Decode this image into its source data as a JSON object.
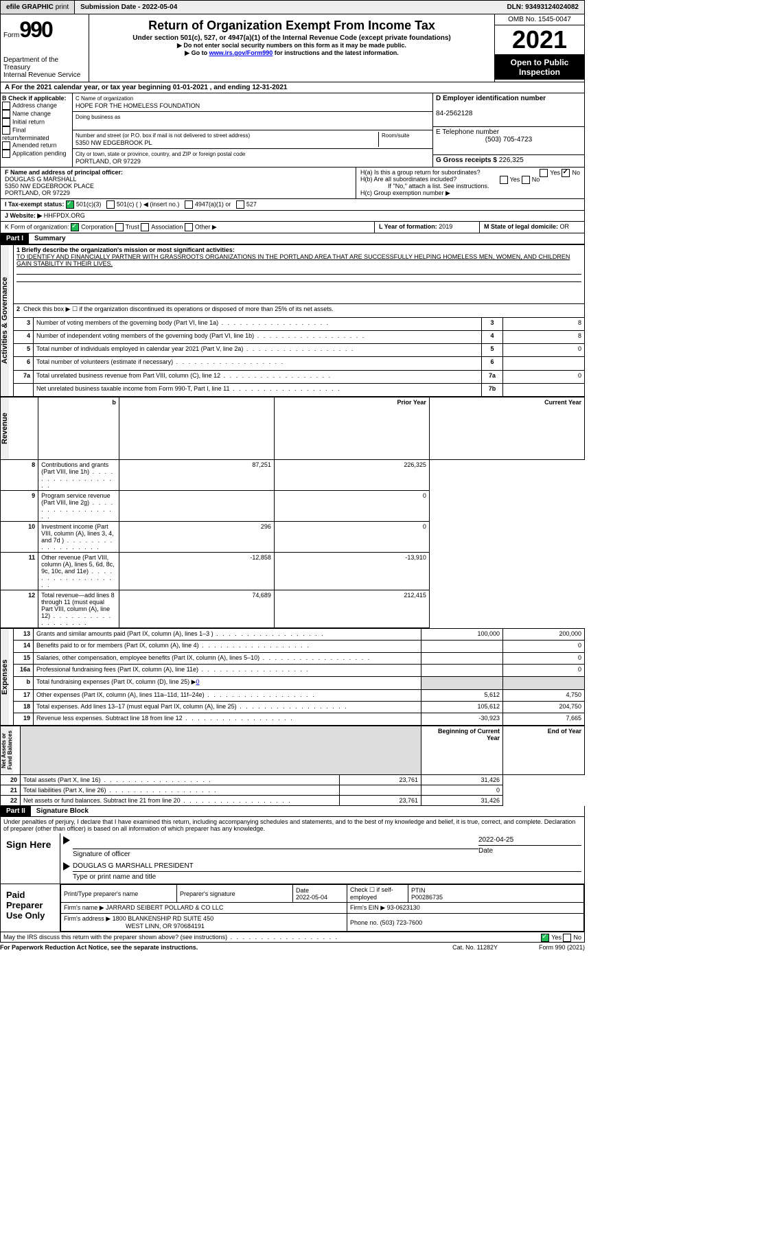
{
  "toolbar": {
    "efile": "efile GRAPHIC",
    "print": "print",
    "submission": "Submission Date - 2022-05-04",
    "dln": "DLN: 93493124024082"
  },
  "header": {
    "form_label": "Form",
    "form_no": "990",
    "dept": "Department of the Treasury",
    "irs": "Internal Revenue Service",
    "title": "Return of Organization Exempt From Income Tax",
    "subtitle": "Under section 501(c), 527, or 4947(a)(1) of the Internal Revenue Code (except private foundations)",
    "note1": "▶ Do not enter social security numbers on this form as it may be made public.",
    "note2": "▶ Go to ",
    "note2_link": "www.irs.gov/Form990",
    "note2_tail": " for instructions and the latest information.",
    "omb": "OMB No. 1545-0047",
    "year": "2021",
    "inspection": "Open to Public Inspection"
  },
  "lineA": "A For the 2021 calendar year, or tax year beginning 01-01-2021    , and ending 12-31-2021",
  "B": {
    "hdr": "B Check if applicable:",
    "items": [
      "Address change",
      "Name change",
      "Initial return",
      "Final return/terminated",
      "Amended return",
      "Application pending"
    ]
  },
  "C": {
    "name_lbl": "C Name of organization",
    "name": "HOPE FOR THE HOMELESS FOUNDATION",
    "dba_lbl": "Doing business as",
    "dba": "",
    "addr_lbl": "Number and street (or P.O. box if mail is not delivered to street address)",
    "room_lbl": "Room/suite",
    "addr": "5350 NW EDGEBROOK PL",
    "city_lbl": "City or town, state or province, country, and ZIP or foreign postal code",
    "city": "PORTLAND, OR  97229"
  },
  "D": {
    "lbl": "D Employer identification number",
    "val": "84-2562128"
  },
  "E": {
    "lbl": "E Telephone number",
    "val": "(503) 705-4723"
  },
  "G": {
    "lbl": "G Gross receipts $",
    "val": "226,325"
  },
  "F": {
    "lbl": "F Name and address of principal officer:",
    "name": "DOUGLAS G MARSHALL",
    "addr1": "5350 NW EDGEBROOK PLACE",
    "addr2": "PORTLAND, OR  97229"
  },
  "H": {
    "a": "H(a)  Is this a group return for subordinates?",
    "b": "H(b)  Are all subordinates included?",
    "note": "If \"No,\" attach a list. See instructions.",
    "c": "H(c)  Group exemption number ▶"
  },
  "I": {
    "lbl": "I    Tax-exempt status:",
    "opts": [
      "501(c)(3)",
      "501(c) (  ) ◀ (insert no.)",
      "4947(a)(1) or",
      "527"
    ]
  },
  "J": {
    "lbl": "J   Website: ▶",
    "val": "HHFPDX.ORG"
  },
  "K": {
    "lbl": "K Form of organization:",
    "opts": [
      "Corporation",
      "Trust",
      "Association",
      "Other ▶"
    ]
  },
  "L": {
    "lbl": "L Year of formation:",
    "val": "2019"
  },
  "M": {
    "lbl": "M State of legal domicile:",
    "val": "OR"
  },
  "part1": {
    "hdr": "Part I",
    "title": "Summary"
  },
  "sections": {
    "ag": "Activities & Governance",
    "rev": "Revenue",
    "exp": "Expenses",
    "na": "Net Assets or Fund Balances"
  },
  "mission_lbl": "1  Briefly describe the organization's mission or most significant activities:",
  "mission": "TO IDENTIFY AND FINANCIALLY PARTNER WITH GRASSROOTS ORGANIZATIONS IN THE PORTLAND AREA THAT ARE SUCCESSFULLY HELPING HOMELESS MEN, WOMEN, AND CHILDREN GAIN STABILITY IN THEIR LIVES.",
  "line2": "Check this box ▶ ☐  if the organization discontinued its operations or disposed of more than 25% of its net assets.",
  "rows_ag": [
    {
      "n": "3",
      "t": "Number of voting members of the governing body (Part VI, line 1a)",
      "b": "3",
      "v": "8"
    },
    {
      "n": "4",
      "t": "Number of independent voting members of the governing body (Part VI, line 1b)",
      "b": "4",
      "v": "8"
    },
    {
      "n": "5",
      "t": "Total number of individuals employed in calendar year 2021 (Part V, line 2a)",
      "b": "5",
      "v": "0"
    },
    {
      "n": "6",
      "t": "Total number of volunteers (estimate if necessary)",
      "b": "6",
      "v": ""
    },
    {
      "n": "7a",
      "t": "Total unrelated business revenue from Part VIII, column (C), line 12",
      "b": "7a",
      "v": "0"
    },
    {
      "n": "",
      "t": "Net unrelated business taxable income from Form 990-T, Part I, line 11",
      "b": "7b",
      "v": ""
    }
  ],
  "hdr_py": "Prior Year",
  "hdr_cy": "Current Year",
  "rows_rev": [
    {
      "n": "8",
      "t": "Contributions and grants (Part VIII, line 1h)",
      "py": "87,251",
      "cy": "226,325"
    },
    {
      "n": "9",
      "t": "Program service revenue (Part VIII, line 2g)",
      "py": "",
      "cy": "0"
    },
    {
      "n": "10",
      "t": "Investment income (Part VIII, column (A), lines 3, 4, and 7d )",
      "py": "296",
      "cy": "0"
    },
    {
      "n": "11",
      "t": "Other revenue (Part VIII, column (A), lines 5, 6d, 8c, 9c, 10c, and 11e)",
      "py": "-12,858",
      "cy": "-13,910"
    },
    {
      "n": "12",
      "t": "Total revenue—add lines 8 through 11 (must equal Part VIII, column (A), line 12)",
      "py": "74,689",
      "cy": "212,415"
    }
  ],
  "rows_exp": [
    {
      "n": "13",
      "t": "Grants and similar amounts paid (Part IX, column (A), lines 1–3 )",
      "py": "100,000",
      "cy": "200,000"
    },
    {
      "n": "14",
      "t": "Benefits paid to or for members (Part IX, column (A), line 4)",
      "py": "",
      "cy": "0"
    },
    {
      "n": "15",
      "t": "Salaries, other compensation, employee benefits (Part IX, column (A), lines 5–10)",
      "py": "",
      "cy": "0"
    },
    {
      "n": "16a",
      "t": "Professional fundraising fees (Part IX, column (A), line 11e)",
      "py": "",
      "cy": "0"
    },
    {
      "n": "b",
      "t": "Total fundraising expenses (Part IX, column (D), line 25) ▶",
      "py": "shade",
      "cy": "shade",
      "inline": "0"
    },
    {
      "n": "17",
      "t": "Other expenses (Part IX, column (A), lines 11a–11d, 11f–24e)",
      "py": "5,612",
      "cy": "4,750"
    },
    {
      "n": "18",
      "t": "Total expenses. Add lines 13–17 (must equal Part IX, column (A), line 25)",
      "py": "105,612",
      "cy": "204,750"
    },
    {
      "n": "19",
      "t": "Revenue less expenses. Subtract line 18 from line 12",
      "py": "-30,923",
      "cy": "7,665"
    }
  ],
  "hdr_by": "Beginning of Current Year",
  "hdr_ey": "End of Year",
  "rows_na": [
    {
      "n": "20",
      "t": "Total assets (Part X, line 16)",
      "py": "23,761",
      "cy": "31,426"
    },
    {
      "n": "21",
      "t": "Total liabilities (Part X, line 26)",
      "py": "",
      "cy": "0"
    },
    {
      "n": "22",
      "t": "Net assets or fund balances. Subtract line 21 from line 20",
      "py": "23,761",
      "cy": "31,426"
    }
  ],
  "part2": {
    "hdr": "Part II",
    "title": "Signature Block"
  },
  "penalty": "Under penalties of perjury, I declare that I have examined this return, including accompanying schedules and statements, and to the best of my knowledge and belief, it is true, correct, and complete. Declaration of preparer (other than officer) is based on all information of which preparer has any knowledge.",
  "sign": {
    "here": "Sign Here",
    "sig_lbl": "Signature of officer",
    "date_lbl": "Date",
    "date": "2022-04-25",
    "name": "DOUGLAS G MARSHALL  PRESIDENT",
    "name_lbl": "Type or print name and title"
  },
  "paid": {
    "hdr": "Paid Preparer Use Only",
    "c1": "Print/Type preparer's name",
    "c2": "Preparer's signature",
    "c3_lbl": "Date",
    "c3": "2022-05-04",
    "c4_lbl": "Check ☐ if self-employed",
    "c5_lbl": "PTIN",
    "c5": "P00286735",
    "firm_lbl": "Firm's name    ▶",
    "firm": "JARRARD SEIBERT POLLARD & CO LLC",
    "ein_lbl": "Firm's EIN ▶",
    "ein": "93-0623130",
    "addr_lbl": "Firm's address ▶",
    "addr1": "1800 BLANKENSHIP RD SUITE 450",
    "addr2": "WEST LINN, OR  970684191",
    "ph_lbl": "Phone no.",
    "ph": "(503) 723-7600"
  },
  "discuss": "May the IRS discuss this return with the preparer shown above? (see instructions)",
  "ftr": {
    "l": "For Paperwork Reduction Act Notice, see the separate instructions.",
    "m": "Cat. No. 11282Y",
    "r": "Form 990 (2021)"
  }
}
